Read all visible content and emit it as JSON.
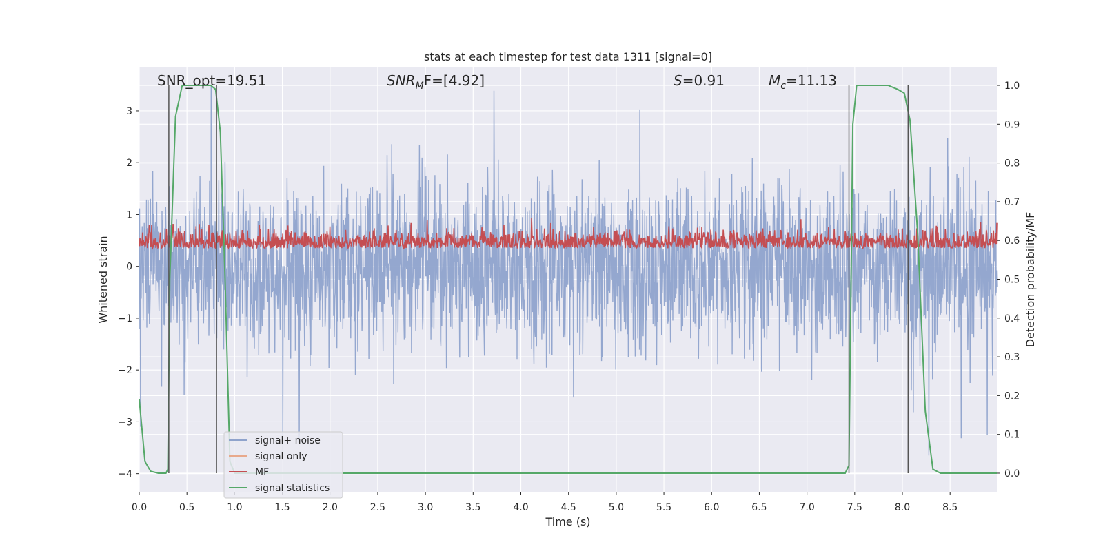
{
  "chart_data": {
    "type": "line",
    "title": "stats at each timestep for test data 1311 [signal=0]",
    "xlabel": "Time (s)",
    "ylabel": "Whitened strain",
    "y2label": "Detection probability/MF",
    "xlim": [
      0.0,
      8.99
    ],
    "ylim": [
      -4.35,
      3.85
    ],
    "y2lim": [
      -0.048,
      1.048
    ],
    "xticks": [
      "0.0",
      "0.5",
      "1.0",
      "1.5",
      "2.0",
      "2.5",
      "3.0",
      "3.5",
      "4.0",
      "4.5",
      "5.0",
      "5.5",
      "6.0",
      "6.5",
      "7.0",
      "7.5",
      "8.0",
      "8.5"
    ],
    "yticks": [
      "−4",
      "−3",
      "−2",
      "−1",
      "0",
      "1",
      "2",
      "3"
    ],
    "y2ticks": [
      "0.0",
      "0.1",
      "0.2",
      "0.3",
      "0.4",
      "0.5",
      "0.6",
      "0.7",
      "0.8",
      "0.9",
      "1.0"
    ],
    "grid": true,
    "legend_position": "lower-left",
    "annotations": {
      "snr_opt": "SNR_opt=19.51",
      "snr_mf_main": "SNR",
      "snr_mf_sub": "M",
      "snr_mf_rest": "F=[4.92]",
      "s_main": "S",
      "s_rest": "=0.91",
      "mc_main": "M",
      "mc_sub": "c",
      "mc_rest": "=11.13"
    },
    "series": [
      {
        "name": "signal+ noise",
        "color": "#8fa3cc",
        "axis": "left",
        "noise_band_core": [
          -1.05,
          1.05
        ],
        "spike_range": [
          -3.65,
          3.5
        ]
      },
      {
        "name": "signal only",
        "color": "#e8a98c",
        "axis": "left",
        "values": []
      },
      {
        "name": "MF",
        "color": "#c44e52",
        "axis": "right",
        "baseline": 0.58,
        "range": [
          0.54,
          0.66
        ]
      },
      {
        "name": "signal statistics",
        "color": "#55a868",
        "axis": "right",
        "x": [
          0.0,
          0.06,
          0.12,
          0.2,
          0.28,
          0.3,
          0.32,
          0.38,
          0.45,
          0.55,
          0.65,
          0.75,
          0.8,
          0.85,
          0.9,
          0.95,
          1.0,
          1.2,
          7.0,
          7.4,
          7.44,
          7.48,
          7.52,
          7.58,
          7.7,
          7.85,
          7.95,
          8.02,
          8.08,
          8.16,
          8.24,
          8.32,
          8.4,
          8.99
        ],
        "values": [
          0.19,
          0.03,
          0.005,
          0.0,
          0.0,
          0.01,
          0.5,
          0.92,
          1.0,
          1.0,
          1.0,
          1.0,
          0.99,
          0.88,
          0.5,
          0.03,
          0.0,
          0.0,
          0.0,
          0.0,
          0.02,
          0.9,
          1.0,
          1.0,
          1.0,
          1.0,
          0.99,
          0.98,
          0.91,
          0.62,
          0.16,
          0.01,
          0.0,
          0.0
        ]
      }
    ],
    "vertical_lines_x": [
      0.31,
      0.81,
      7.44,
      8.06
    ]
  }
}
